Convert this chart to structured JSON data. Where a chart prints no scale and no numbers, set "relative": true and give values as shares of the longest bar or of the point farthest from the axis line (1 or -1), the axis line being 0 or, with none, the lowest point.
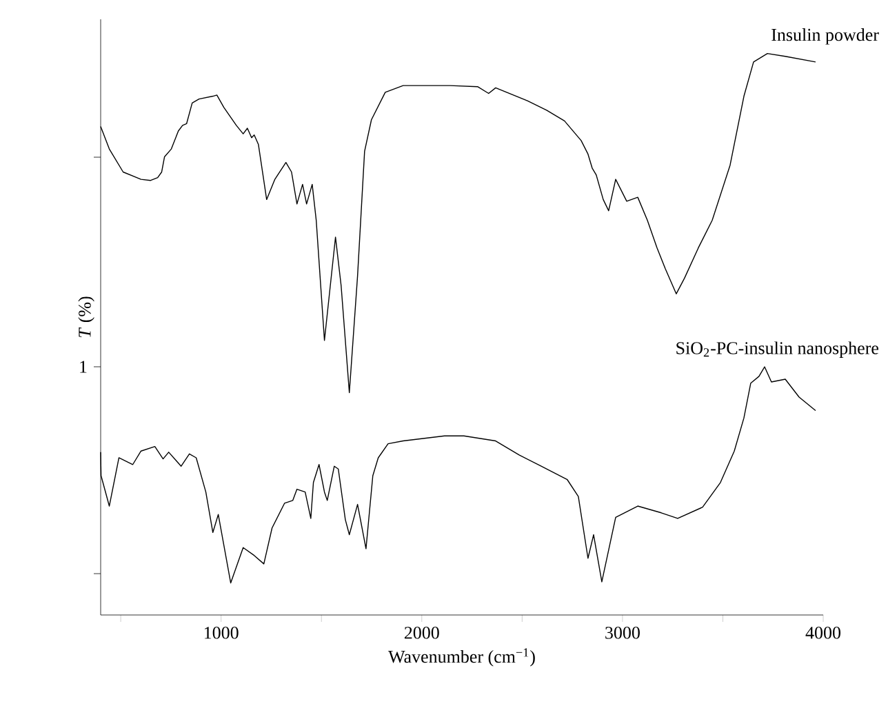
{
  "chart_data": {
    "type": "line",
    "relative": true,
    "xlabel": "Wavenumber (cm$^{−1}$)",
    "ylabel": "*T* (%)",
    "xlim": [
      400,
      4000
    ],
    "xticks": [
      {
        "value": 500,
        "label": null
      },
      1000,
      {
        "value": 1500,
        "label": null
      },
      2000,
      {
        "value": 2500,
        "label": null
      },
      3000,
      {
        "value": 3500,
        "label": null
      },
      4000
    ],
    "annotations": [
      "1"
    ],
    "series": [
      {
        "name": "Insulin powder",
        "color": "#000000",
        "x": [
          400,
          443,
          512,
          601,
          649,
          684,
          704,
          718,
          752,
          787,
          808,
          828,
          856,
          890,
          959,
          979,
          1014,
          1076,
          1110,
          1131,
          1152,
          1165,
          1186,
          1227,
          1268,
          1323,
          1351,
          1378,
          1406,
          1426,
          1454,
          1474,
          1515,
          1570,
          1598,
          1639,
          1680,
          1715,
          1749,
          1818,
          1907,
          2141,
          2278,
          2333,
          2368,
          2526,
          2622,
          2711,
          2794,
          2828,
          2849,
          2869,
          2904,
          2931,
          2966,
          3021,
          3076,
          3124,
          3172,
          3213,
          3268,
          3309,
          3378,
          3447,
          3536,
          3605,
          3653,
          3722,
          3811,
          3962
        ],
        "values": [
          0.87,
          0.83,
          0.789,
          0.776,
          0.774,
          0.779,
          0.789,
          0.816,
          0.83,
          0.862,
          0.872,
          0.875,
          0.912,
          0.919,
          0.924,
          0.926,
          0.904,
          0.872,
          0.857,
          0.867,
          0.85,
          0.855,
          0.838,
          0.74,
          0.776,
          0.806,
          0.789,
          0.732,
          0.767,
          0.732,
          0.767,
          0.703,
          0.489,
          0.673,
          0.587,
          0.396,
          0.604,
          0.826,
          0.882,
          0.931,
          0.943,
          0.943,
          0.941,
          0.929,
          0.939,
          0.916,
          0.899,
          0.88,
          0.845,
          0.821,
          0.796,
          0.784,
          0.74,
          0.72,
          0.776,
          0.737,
          0.744,
          0.703,
          0.654,
          0.617,
          0.572,
          0.6,
          0.654,
          0.703,
          0.801,
          0.924,
          0.985,
          1.0,
          0.995,
          0.985
        ]
      },
      {
        "name": "SiO$_{2}$-PC-insulin nanosphere",
        "color": "#000000",
        "x": [
          400,
          402,
          443,
          491,
          560,
          601,
          670,
          711,
          739,
          801,
          842,
          876,
          924,
          959,
          986,
          1048,
          1110,
          1165,
          1213,
          1254,
          1316,
          1357,
          1378,
          1419,
          1447,
          1460,
          1488,
          1515,
          1529,
          1564,
          1584,
          1619,
          1639,
          1680,
          1722,
          1756,
          1783,
          1832,
          1907,
          2113,
          2210,
          2368,
          2485,
          2595,
          2725,
          2780,
          2828,
          2856,
          2897,
          2966,
          3076,
          3193,
          3275,
          3399,
          3488,
          3557,
          3605,
          3639,
          3680,
          3708,
          3742,
          3811,
          3880,
          3962
        ],
        "values": [
          0.29,
          0.248,
          0.194,
          0.28,
          0.268,
          0.292,
          0.3,
          0.278,
          0.29,
          0.265,
          0.287,
          0.28,
          0.219,
          0.147,
          0.179,
          0.057,
          0.12,
          0.106,
          0.091,
          0.155,
          0.199,
          0.204,
          0.224,
          0.219,
          0.172,
          0.236,
          0.268,
          0.219,
          0.204,
          0.265,
          0.26,
          0.17,
          0.143,
          0.197,
          0.118,
          0.248,
          0.28,
          0.305,
          0.31,
          0.319,
          0.319,
          0.31,
          0.285,
          0.265,
          0.241,
          0.211,
          0.101,
          0.143,
          0.059,
          0.174,
          0.194,
          0.182,
          0.172,
          0.192,
          0.236,
          0.292,
          0.351,
          0.413,
          0.425,
          0.442,
          0.415,
          0.42,
          0.388,
          0.364
        ]
      }
    ]
  }
}
